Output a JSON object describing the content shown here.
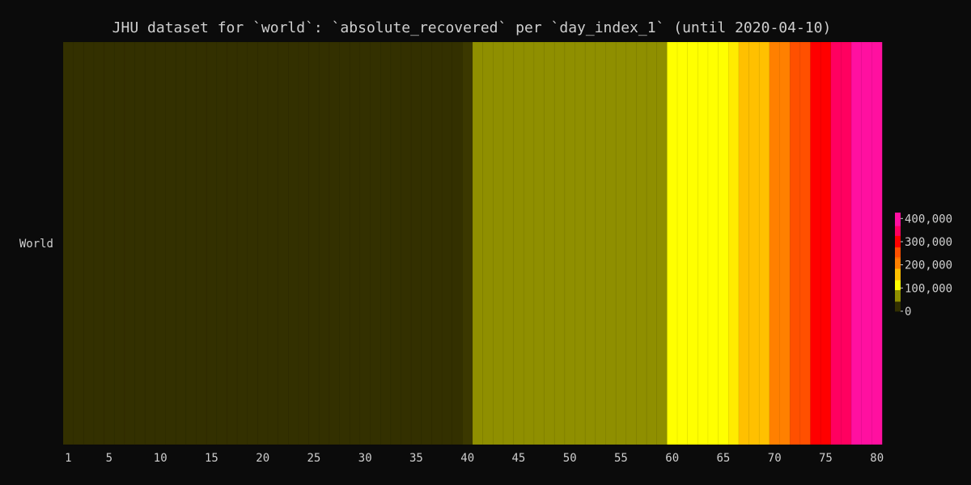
{
  "chart_data": {
    "type": "heatmap",
    "title": "JHU dataset for `world`: `absolute_recovered` per `day_index_1` (until 2020-04-10)",
    "rows": [
      "World"
    ],
    "x": [
      1,
      2,
      3,
      4,
      5,
      6,
      7,
      8,
      9,
      10,
      11,
      12,
      13,
      14,
      15,
      16,
      17,
      18,
      19,
      20,
      21,
      22,
      23,
      24,
      25,
      26,
      27,
      28,
      29,
      30,
      31,
      32,
      33,
      34,
      35,
      36,
      37,
      38,
      39,
      40,
      41,
      42,
      43,
      44,
      45,
      46,
      47,
      48,
      49,
      50,
      51,
      52,
      53,
      54,
      55,
      56,
      57,
      58,
      59,
      60,
      61,
      62,
      63,
      64,
      65,
      66,
      67,
      68,
      69,
      70,
      71,
      72,
      73,
      74,
      75,
      76,
      77,
      78,
      79,
      80
    ],
    "values": [
      28,
      30,
      36,
      39,
      52,
      61,
      107,
      126,
      143,
      222,
      284,
      472,
      623,
      852,
      1124,
      1487,
      2011,
      2616,
      3244,
      3946,
      4683,
      5150,
      6295,
      8058,
      9395,
      10865,
      12583,
      14352,
      16121,
      18177,
      18890,
      22886,
      23394,
      25227,
      27905,
      30384,
      33277,
      36711,
      39782,
      42716,
      45602,
      48228,
      51170,
      53796,
      55865,
      58358,
      60694,
      62494,
      64404,
      67003,
      68324,
      70251,
      72624,
      76034,
      78088,
      80840,
      83312,
      84975,
      87420,
      97704,
      98312,
      107996,
      113641,
      118940,
      125986,
      136796,
      150062,
      168061,
      181098,
      197211,
      216215,
      240109,
      265866,
      279840,
      303099,
      338524,
      356860,
      376224,
      402066,
      425403
    ],
    "xticks": [
      "1",
      "5",
      "10",
      "15",
      "20",
      "25",
      "30",
      "35",
      "40",
      "45",
      "50",
      "55",
      "60",
      "65",
      "70",
      "75",
      "80"
    ],
    "xtick_values": [
      1,
      5,
      10,
      15,
      20,
      25,
      30,
      35,
      40,
      45,
      50,
      55,
      60,
      65,
      70,
      75,
      80
    ],
    "xlim": [
      1,
      80
    ],
    "colorbar": {
      "ticks": [
        "400,000",
        "300,000",
        "200,000",
        "100,000",
        "0"
      ],
      "tick_values": [
        400000,
        300000,
        200000,
        100000,
        0
      ],
      "range": [
        0,
        425403
      ],
      "scale": [
        {
          "stop": 0.0,
          "color": "#333000"
        },
        {
          "stop": 0.1,
          "color": "#333000"
        },
        {
          "stop": 0.105,
          "color": "#8f8f00"
        },
        {
          "stop": 0.21,
          "color": "#8f8f00"
        },
        {
          "stop": 0.215,
          "color": "#ffff00"
        },
        {
          "stop": 0.32,
          "color": "#ffff00"
        },
        {
          "stop": 0.325,
          "color": "#ffc000"
        },
        {
          "stop": 0.43,
          "color": "#ffc000"
        },
        {
          "stop": 0.435,
          "color": "#ff8000"
        },
        {
          "stop": 0.54,
          "color": "#ff8000"
        },
        {
          "stop": 0.545,
          "color": "#ff5000"
        },
        {
          "stop": 0.65,
          "color": "#ff5000"
        },
        {
          "stop": 0.655,
          "color": "#ff0000"
        },
        {
          "stop": 0.76,
          "color": "#ff0000"
        },
        {
          "stop": 0.765,
          "color": "#ff0060"
        },
        {
          "stop": 0.87,
          "color": "#ff0060"
        },
        {
          "stop": 0.875,
          "color": "#ff10a0"
        },
        {
          "stop": 1.0,
          "color": "#ff10a0"
        }
      ]
    },
    "colors": {
      "background": "#0b0b0b",
      "text": "#cfcfcf"
    }
  }
}
